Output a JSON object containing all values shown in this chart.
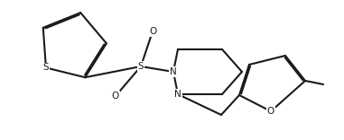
{
  "bg_color": "#ffffff",
  "line_color": "#1a1a1a",
  "line_width": 1.5,
  "dbo": 0.012,
  "figsize": [
    3.81,
    1.56
  ],
  "dpi": 100,
  "xlim": [
    0,
    3.81
  ],
  "ylim": [
    0,
    1.56
  ]
}
